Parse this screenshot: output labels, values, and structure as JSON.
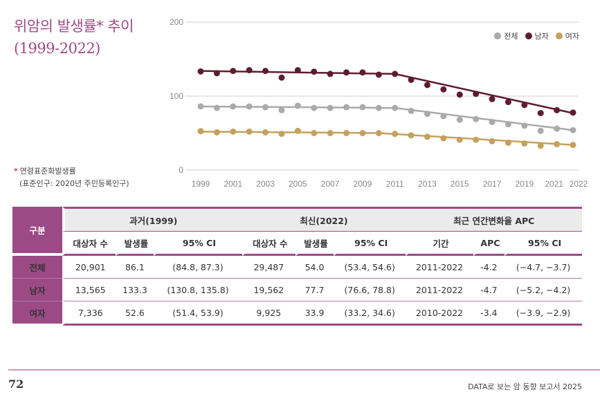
{
  "title": {
    "line1": "위암의 발생률* 추이",
    "line2": "(1999-2022)"
  },
  "note": {
    "star": "*",
    "line1": "연령표준화발생률",
    "line2": "(표준인구: 2020년 주민등록인구)"
  },
  "chart_data": {
    "type": "line",
    "title": "위암의 발생률* 추이 (1999-2022)",
    "xlabel": "",
    "ylabel": "",
    "ylim": [
      0,
      200
    ],
    "yticks": [
      0,
      100,
      200
    ],
    "xticks": [
      "1999",
      "2001",
      "2003",
      "2005",
      "2007",
      "2009",
      "2011",
      "2013",
      "2015",
      "2017",
      "2019",
      "2021",
      "2022"
    ],
    "grid": true,
    "legend_position": "top-right",
    "x": [
      1999,
      2000,
      2001,
      2002,
      2003,
      2004,
      2005,
      2006,
      2007,
      2008,
      2009,
      2010,
      2011,
      2012,
      2013,
      2014,
      2015,
      2016,
      2017,
      2018,
      2019,
      2020,
      2021,
      2022
    ],
    "series": [
      {
        "name": "전체",
        "color": "#aaaaaa",
        "values": [
          86.1,
          84,
          86,
          86,
          85,
          81,
          87,
          84,
          84,
          85,
          85,
          84,
          84,
          80,
          76,
          73,
          68,
          69,
          65,
          62,
          60,
          53,
          56,
          54.0
        ],
        "trend": [
          [
            1999,
            86
          ],
          [
            2011,
            84
          ],
          [
            2022,
            54
          ]
        ]
      },
      {
        "name": "남자",
        "color": "#5e1d2e",
        "values": [
          133.3,
          131,
          134,
          135,
          134,
          125,
          135,
          133,
          130,
          132,
          132,
          129,
          130,
          122,
          115,
          109,
          102,
          103,
          96,
          92,
          88,
          77,
          81,
          77.7
        ],
        "trend": [
          [
            1999,
            134
          ],
          [
            2011,
            130
          ],
          [
            2022,
            77
          ]
        ]
      },
      {
        "name": "여자",
        "color": "#c4a15c",
        "values": [
          52.6,
          51,
          52,
          52,
          51,
          49,
          53,
          50,
          50,
          50,
          50,
          50,
          49,
          47,
          45,
          43,
          41,
          41,
          39,
          37,
          36,
          33,
          35,
          33.9
        ],
        "trend": [
          [
            1999,
            52
          ],
          [
            2010,
            50
          ],
          [
            2022,
            34
          ]
        ]
      }
    ]
  },
  "table": {
    "corner": "구분",
    "groups": [
      "과거(1999)",
      "최신(2022)",
      "최근 연간변화율 APC"
    ],
    "subheaders": [
      "대상자 수",
      "발생률",
      "95% CI",
      "대상자 수",
      "발생률",
      "95% CI",
      "기간",
      "APC",
      "95% CI"
    ],
    "rows": [
      {
        "label": "전체",
        "cells": [
          "20,901",
          "86.1",
          "(84.8, 87.3)",
          "29,487",
          "54.0",
          "(53.4, 54.6)",
          "2011-2022",
          "-4.2",
          "(−4.7, −3.7)"
        ]
      },
      {
        "label": "남자",
        "cells": [
          "13,565",
          "133.3",
          "(130.8, 135.8)",
          "19,562",
          "77.7",
          "(76.6, 78.8)",
          "2011-2022",
          "-4.7",
          "(−5.2, −4.2)"
        ]
      },
      {
        "label": "여자",
        "cells": [
          "7,336",
          "52.6",
          "(51.4, 53.9)",
          "9,925",
          "33.9",
          "(33.2, 34.6)",
          "2010-2022",
          "-3.4",
          "(−3.9, −2.9)"
        ]
      }
    ]
  },
  "footer": {
    "page_number": "72",
    "publication": "DATA로 보는 암 동향 보고서 2025"
  },
  "colors": {
    "accent": "#9b4a86",
    "total": "#aaaaaa",
    "male": "#5e1d2e",
    "female": "#c4a15c"
  }
}
